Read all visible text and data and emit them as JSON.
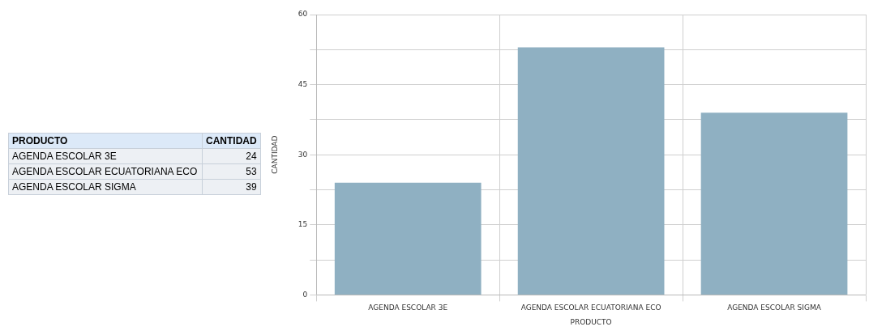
{
  "chart_data": [
    {
      "type": "other",
      "categories": [
        "AGENDA ESCOLAR 3E",
        "AGENDA ESCOLAR ECUATORIANA ECO",
        "AGENDA ESCOLAR SIGMA"
      ],
      "value_labels": [
        "24",
        "53",
        "39"
      ],
      "xlabel": "PRODUCTO",
      "ylabel": "CANTIDAD"
    },
    {
      "type": "bar",
      "categories": [
        "AGENDA ESCOLAR 3E",
        "AGENDA ESCOLAR ECUATORIANA ECO",
        "AGENDA ESCOLAR SIGMA"
      ],
      "values": [
        24,
        53,
        39
      ],
      "color": "#8fb0c2",
      "xlabel": "PRODUCTO",
      "ylabel": "CANTIDAD",
      "ylim": [
        0,
        60
      ],
      "yticks": [
        0,
        {
          "value": 7.5,
          "label": null
        },
        15,
        {
          "value": 22.5,
          "label": null
        },
        30,
        {
          "value": 37.5,
          "label": null
        },
        45,
        {
          "value": 52.5,
          "label": null
        },
        60
      ],
      "grid": true,
      "legend": false
    }
  ]
}
